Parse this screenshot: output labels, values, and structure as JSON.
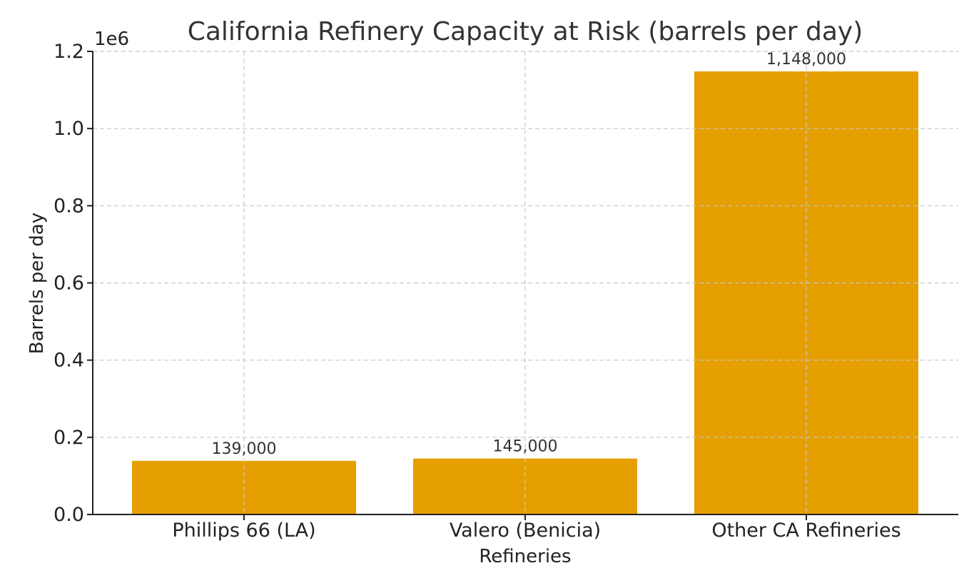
{
  "chart_data": {
    "type": "bar",
    "title": "California Refinery Capacity at Risk (barrels per day)",
    "xlabel": "Refineries",
    "ylabel": "Barrels per day",
    "y_offset_label": "1e6",
    "categories": [
      "Phillips 66 (LA)",
      "Valero (Benicia)",
      "Other CA Refineries"
    ],
    "values": [
      139000,
      145000,
      1148000
    ],
    "data_labels": [
      "139,000",
      "145,000",
      "1,148,000"
    ],
    "ylim": [
      0,
      1200000
    ],
    "yticks": [
      0,
      200000,
      400000,
      600000,
      800000,
      1000000,
      1200000
    ],
    "ytick_labels": [
      "0.0",
      "0.2",
      "0.4",
      "0.6",
      "0.8",
      "1.0",
      "1.2"
    ],
    "grid": true,
    "bar_color": "#E69F00"
  }
}
